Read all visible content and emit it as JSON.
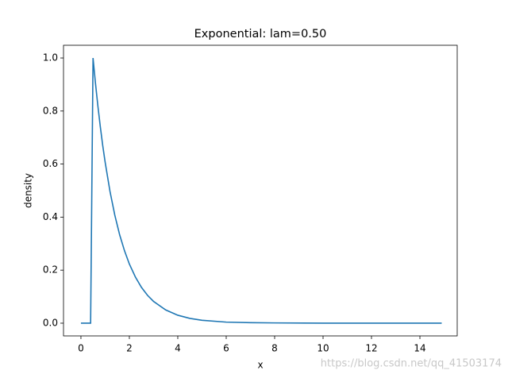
{
  "chart_data": {
    "type": "line",
    "title": "Exponential: lam=0.50",
    "x_label": "x",
    "y_label": "density",
    "x": [
      0,
      0.4,
      0.5,
      0.6,
      0.7,
      0.8,
      0.9,
      1.0,
      1.2,
      1.4,
      1.6,
      1.8,
      2.0,
      2.25,
      2.5,
      2.75,
      3,
      3.5,
      4,
      4.5,
      5,
      6,
      7,
      8,
      10,
      12,
      14.9
    ],
    "series": [
      {
        "color": "#1f77b4",
        "values": [
          0,
          0,
          1.0,
          0.905,
          0.819,
          0.741,
          0.67,
          0.607,
          0.497,
          0.407,
          0.333,
          0.273,
          0.223,
          0.174,
          0.135,
          0.105,
          0.082,
          0.05,
          0.03,
          0.018,
          0.011,
          0.004,
          0.002,
          0.001,
          0,
          0,
          0
        ]
      }
    ],
    "xlim": [
      -0.72,
      15.54
    ],
    "ylim": [
      -0.048,
      1.048
    ],
    "xticks": [
      0,
      2,
      4,
      6,
      8,
      10,
      12,
      14
    ],
    "yticks": [
      {
        "value": 0,
        "label": "0.0"
      },
      {
        "value": 0.2,
        "label": "0.2"
      },
      {
        "value": 0.4,
        "label": "0.4"
      },
      {
        "value": 0.6,
        "label": "0.6"
      },
      {
        "value": 0.8,
        "label": "0.8"
      },
      {
        "value": 1.0,
        "label": "1.0"
      }
    ],
    "watermark": "https://blog.csdn.net/qq_41503174"
  }
}
